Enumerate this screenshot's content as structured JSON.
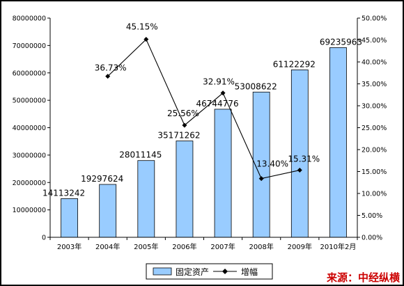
{
  "chart_data": {
    "type": "bar",
    "categories": [
      "2003年",
      "2004年",
      "2005年",
      "2006年",
      "2007年",
      "2008年",
      "2009年",
      "2010年2月"
    ],
    "series": [
      {
        "name": "固定资产",
        "kind": "bar",
        "axis": "left",
        "values": [
          14113242,
          19297624,
          28011145,
          35171262,
          46744776,
          53008622,
          61122292,
          69235963
        ],
        "labels": [
          "14113242",
          "19297624",
          "28011145",
          "35171262",
          "46744776",
          "53008622",
          "61122292",
          "69235963"
        ],
        "color": "#99ccff"
      },
      {
        "name": "增幅",
        "kind": "line",
        "axis": "right",
        "values": [
          null,
          36.73,
          45.15,
          25.56,
          32.91,
          13.4,
          15.31,
          null
        ],
        "labels": [
          "",
          "36.73%",
          "45.15%",
          "25.56%",
          "32.91%",
          "13.40%",
          "15.31%",
          ""
        ],
        "color": "#000000"
      }
    ],
    "y_left": {
      "min": 0,
      "max": 80000000,
      "ticks": [
        0,
        10000000,
        20000000,
        30000000,
        40000000,
        50000000,
        60000000,
        70000000,
        80000000
      ],
      "tick_labels": [
        "0",
        "10000000",
        "20000000",
        "30000000",
        "40000000",
        "50000000",
        "60000000",
        "70000000",
        "80000000"
      ]
    },
    "y_right": {
      "min": 0,
      "max": 50,
      "ticks": [
        0,
        5,
        10,
        15,
        20,
        25,
        30,
        35,
        40,
        45,
        50
      ],
      "tick_labels": [
        "0.00%",
        "5.00%",
        "10.00%",
        "15.00%",
        "20.00%",
        "25.00%",
        "30.00%",
        "35.00%",
        "40.00%",
        "45.00%",
        "50.00%"
      ]
    },
    "grid": false,
    "legend": {
      "position": "bottom-center",
      "entries": [
        "固定资产",
        "增幅"
      ]
    }
  },
  "source_label": "来源：中经纵横",
  "colors": {
    "source": "#cc0000",
    "border": "#000000"
  }
}
